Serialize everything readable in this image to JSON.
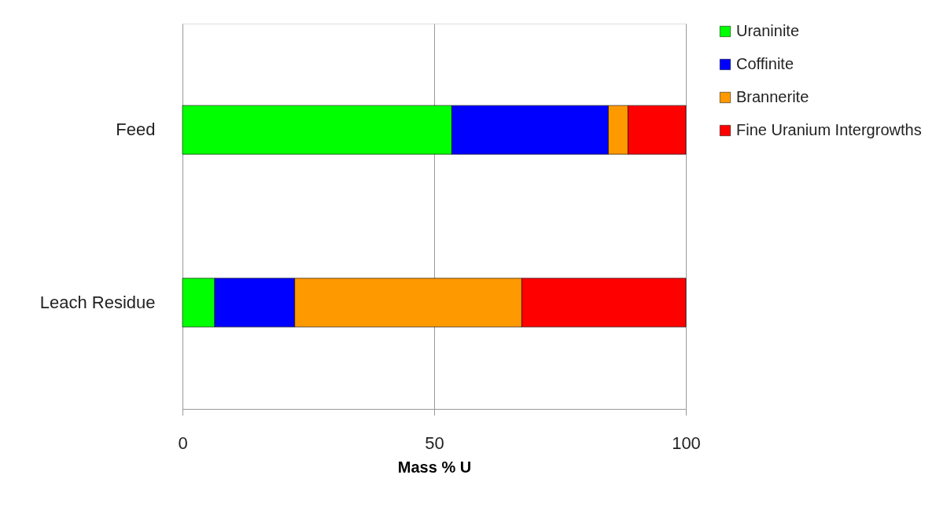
{
  "chart_data": {
    "type": "bar",
    "orientation": "horizontal",
    "stacked": true,
    "categories": [
      "Feed",
      "Leach Residue"
    ],
    "xlabel": "Mass  % U",
    "xlim": [
      0,
      100
    ],
    "xticks": [
      0,
      50,
      100
    ],
    "grid": "x",
    "legend": "right",
    "series": [
      {
        "name": "Uraninite",
        "color": "#00ff00",
        "values": [
          53.5,
          6.4
        ]
      },
      {
        "name": "Coffinite",
        "color": "#0000ff",
        "values": [
          31.1,
          15.9
        ]
      },
      {
        "name": "Brannerite",
        "color": "#ff9900",
        "values": [
          3.9,
          45.1
        ]
      },
      {
        "name": "Fine Uranium Intergrowths",
        "color": "#ff0000",
        "values": [
          11.5,
          32.6
        ]
      }
    ]
  }
}
